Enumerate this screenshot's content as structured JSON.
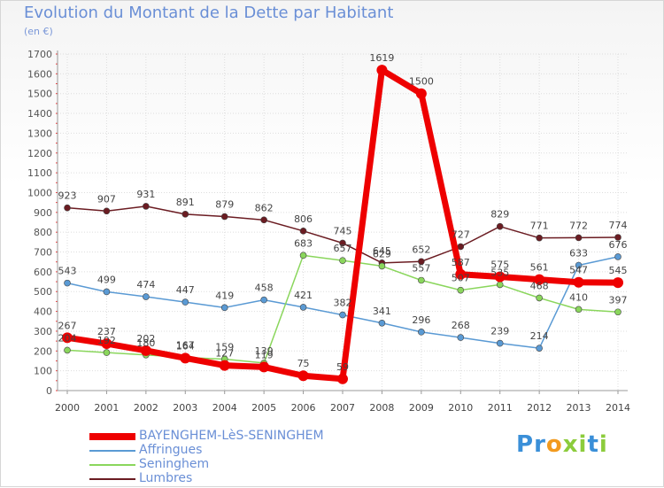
{
  "title": "Evolution du Montant de la Dette par Habitant",
  "subtitle": "(en €)",
  "chart_data": {
    "type": "line",
    "title": "Evolution du Montant de la Dette par Habitant",
    "ylabel": "(en €)",
    "xlabel": "",
    "ylim": [
      0,
      1700
    ],
    "yticks": [
      0,
      100,
      200,
      300,
      400,
      500,
      600,
      700,
      800,
      900,
      1000,
      1100,
      1200,
      1300,
      1400,
      1500,
      1600,
      1700
    ],
    "x": [
      "2000",
      "2001",
      "2002",
      "2003",
      "2004",
      "2005",
      "2006",
      "2007",
      "2008",
      "2009",
      "2010",
      "2011",
      "2012",
      "2013",
      "2014"
    ],
    "grid": true,
    "series": [
      {
        "name": "Lumbres",
        "color": "#6b1c22",
        "values": [
          923,
          907,
          931,
          891,
          879,
          862,
          806,
          745,
          645,
          652,
          727,
          829,
          771,
          772,
          774
        ],
        "labels": [
          "923",
          "907",
          "931",
          "891",
          "879",
          "862",
          "806",
          "745",
          "645",
          "652",
          "727",
          "829",
          "771",
          "772",
          "774"
        ]
      },
      {
        "name": "Affringues",
        "color": "#5a9ad4",
        "values": [
          543,
          499,
          474,
          447,
          419,
          458,
          421,
          382,
          341,
          296,
          268,
          239,
          214,
          633,
          676
        ],
        "labels": [
          "543",
          "499",
          "474",
          "447",
          "419",
          "458",
          "421",
          "382",
          "341",
          "296",
          "268",
          "239",
          "214",
          "633",
          "676"
        ]
      },
      {
        "name": "Seninghem",
        "color": "#8ad65c",
        "values": [
          204,
          192,
          180,
          167,
          159,
          139,
          683,
          657,
          629,
          557,
          507,
          535,
          468,
          410,
          397
        ],
        "labels": [
          "204",
          "192",
          "180",
          "167",
          "159",
          "139",
          "683",
          "657",
          "629",
          "557",
          "507",
          "535",
          "468",
          "410",
          "397"
        ]
      },
      {
        "name": "BAYENGHEM-LèS-SENINGHEM",
        "color": "#ee0000",
        "values": [
          267,
          237,
          202,
          164,
          127,
          119,
          75,
          59,
          1619,
          1500,
          587,
          575,
          561,
          547,
          545
        ],
        "labels": [
          "267",
          "237",
          "202",
          "164",
          "127",
          "119",
          "75",
          "59",
          "1619",
          "1500",
          "587",
          "575",
          "561",
          "547",
          "545"
        ]
      }
    ]
  },
  "legend": [
    {
      "label": "BAYENGHEM-LèS-SENINGHEM",
      "color": "#ee0000",
      "thick": true
    },
    {
      "label": "Affringues",
      "color": "#5a9ad4",
      "thick": false
    },
    {
      "label": "Seninghem",
      "color": "#8ad65c",
      "thick": false
    },
    {
      "label": "Lumbres",
      "color": "#6b1c22",
      "thick": false
    }
  ],
  "logo": {
    "letters": [
      "P",
      "r",
      "o",
      "x",
      "i",
      "t",
      "i"
    ],
    "colors": [
      "#3a8fd8",
      "#3a8fd8",
      "#f29a1e",
      "#8ccc3c",
      "#8ccc3c",
      "#3a8fd8",
      "#8ccc3c"
    ]
  }
}
